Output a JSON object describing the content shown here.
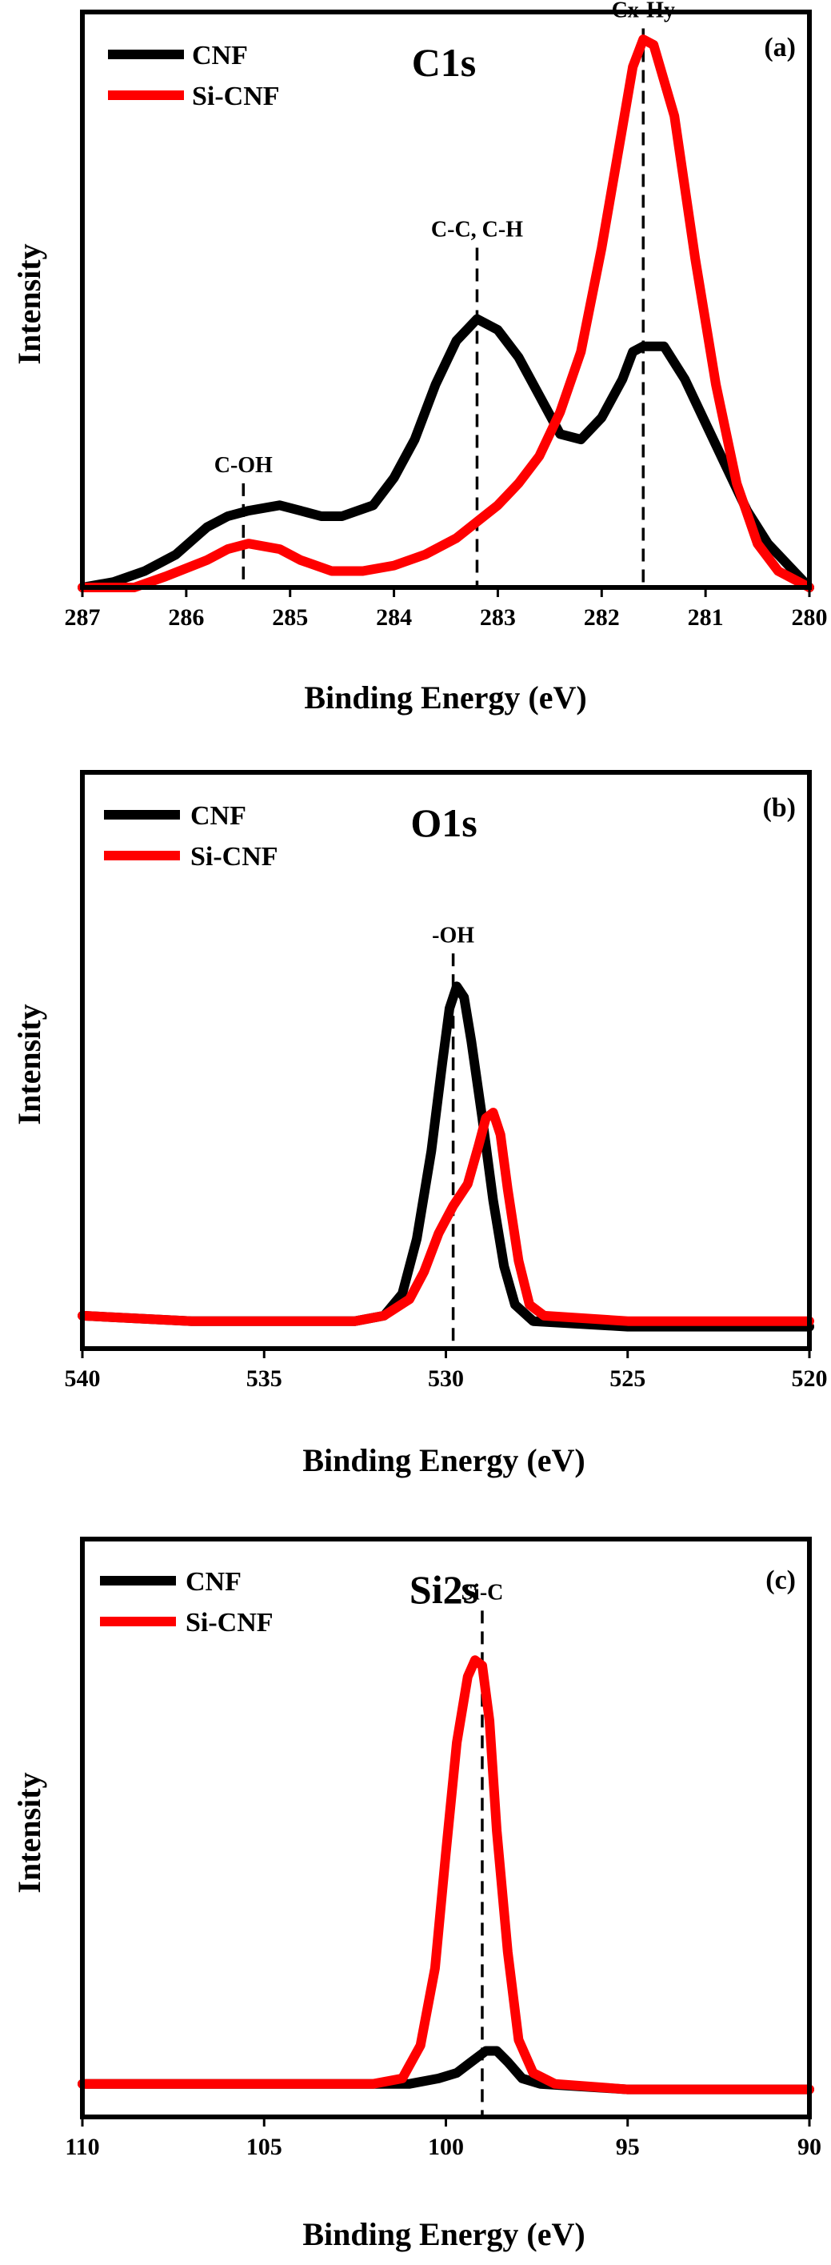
{
  "chart_data": [
    {
      "type": "line",
      "panel_label": "(a)",
      "title": "C1s",
      "xlabel": "Binding Energy (eV)",
      "ylabel": "Intensity",
      "xlim": [
        287,
        280
      ],
      "x_reversed": true,
      "ylim": [
        0,
        1.05
      ],
      "xticks": [
        287,
        286,
        285,
        284,
        283,
        282,
        281,
        280
      ],
      "legend_position": "top-left",
      "series": [
        {
          "name": "CNF",
          "color": "#000000",
          "points": [
            [
              287,
              0.0
            ],
            [
              286.7,
              0.01
            ],
            [
              286.4,
              0.03
            ],
            [
              286.1,
              0.06
            ],
            [
              285.8,
              0.11
            ],
            [
              285.6,
              0.13
            ],
            [
              285.4,
              0.14
            ],
            [
              285.1,
              0.15
            ],
            [
              284.9,
              0.14
            ],
            [
              284.7,
              0.13
            ],
            [
              284.5,
              0.13
            ],
            [
              284.2,
              0.15
            ],
            [
              284,
              0.2
            ],
            [
              283.8,
              0.27
            ],
            [
              283.6,
              0.37
            ],
            [
              283.4,
              0.45
            ],
            [
              283.2,
              0.49
            ],
            [
              283.0,
              0.47
            ],
            [
              282.8,
              0.42
            ],
            [
              282.6,
              0.35
            ],
            [
              282.4,
              0.28
            ],
            [
              282.2,
              0.27
            ],
            [
              282.0,
              0.31
            ],
            [
              281.8,
              0.38
            ],
            [
              281.7,
              0.43
            ],
            [
              281.6,
              0.44
            ],
            [
              281.4,
              0.44
            ],
            [
              281.2,
              0.38
            ],
            [
              281.0,
              0.3
            ],
            [
              280.8,
              0.22
            ],
            [
              280.6,
              0.14
            ],
            [
              280.4,
              0.08
            ],
            [
              280.2,
              0.04
            ],
            [
              280,
              0.0
            ]
          ]
        },
        {
          "name": "Si-CNF",
          "color": "#ff0000",
          "points": [
            [
              287,
              0.0
            ],
            [
              286.5,
              0.0
            ],
            [
              286.2,
              0.02
            ],
            [
              285.8,
              0.05
            ],
            [
              285.6,
              0.07
            ],
            [
              285.4,
              0.08
            ],
            [
              285.1,
              0.07
            ],
            [
              284.9,
              0.05
            ],
            [
              284.6,
              0.03
            ],
            [
              284.3,
              0.03
            ],
            [
              284,
              0.04
            ],
            [
              283.7,
              0.06
            ],
            [
              283.4,
              0.09
            ],
            [
              283.2,
              0.12
            ],
            [
              283.0,
              0.15
            ],
            [
              282.8,
              0.19
            ],
            [
              282.6,
              0.24
            ],
            [
              282.4,
              0.32
            ],
            [
              282.2,
              0.43
            ],
            [
              282.0,
              0.62
            ],
            [
              281.8,
              0.84
            ],
            [
              281.7,
              0.95
            ],
            [
              281.6,
              1.0
            ],
            [
              281.5,
              0.99
            ],
            [
              281.3,
              0.86
            ],
            [
              281.1,
              0.6
            ],
            [
              280.9,
              0.37
            ],
            [
              280.7,
              0.19
            ],
            [
              280.5,
              0.08
            ],
            [
              280.3,
              0.03
            ],
            [
              280,
              0.0
            ]
          ]
        }
      ],
      "annotations": [
        {
          "text": "C-OH",
          "x": 285.45,
          "y_top": 0.19
        },
        {
          "text": "C-C, C-H",
          "x": 283.2,
          "y_top": 0.62
        },
        {
          "text": "Cx-Hy",
          "x": 281.6,
          "y_top": 1.02
        }
      ]
    },
    {
      "type": "line",
      "panel_label": "(b)",
      "title": "O1s",
      "xlabel": "Binding Energy (eV)",
      "ylabel": "Intensity",
      "xlim": [
        540,
        520
      ],
      "x_reversed": true,
      "ylim": [
        0,
        1.05
      ],
      "xticks": [
        540,
        535,
        530,
        525,
        520
      ],
      "legend_position": "top-left",
      "series": [
        {
          "name": "CNF",
          "color": "#000000",
          "points": [
            [
              540,
              0.06
            ],
            [
              537,
              0.05
            ],
            [
              534,
              0.05
            ],
            [
              532.5,
              0.05
            ],
            [
              531.7,
              0.06
            ],
            [
              531.2,
              0.1
            ],
            [
              530.8,
              0.2
            ],
            [
              530.4,
              0.36
            ],
            [
              530.1,
              0.52
            ],
            [
              529.9,
              0.62
            ],
            [
              529.7,
              0.66
            ],
            [
              529.5,
              0.64
            ],
            [
              529.3,
              0.56
            ],
            [
              529.0,
              0.42
            ],
            [
              528.7,
              0.27
            ],
            [
              528.4,
              0.15
            ],
            [
              528.1,
              0.08
            ],
            [
              527.6,
              0.05
            ],
            [
              525,
              0.04
            ],
            [
              522,
              0.04
            ],
            [
              520,
              0.04
            ]
          ]
        },
        {
          "name": "Si-CNF",
          "color": "#ff0000",
          "points": [
            [
              540,
              0.06
            ],
            [
              537,
              0.05
            ],
            [
              534,
              0.05
            ],
            [
              532.5,
              0.05
            ],
            [
              531.7,
              0.06
            ],
            [
              531.0,
              0.09
            ],
            [
              530.6,
              0.14
            ],
            [
              530.2,
              0.21
            ],
            [
              529.8,
              0.26
            ],
            [
              529.4,
              0.3
            ],
            [
              529.1,
              0.37
            ],
            [
              528.9,
              0.42
            ],
            [
              528.7,
              0.43
            ],
            [
              528.5,
              0.39
            ],
            [
              528.3,
              0.29
            ],
            [
              528.0,
              0.16
            ],
            [
              527.7,
              0.08
            ],
            [
              527.3,
              0.06
            ],
            [
              525,
              0.05
            ],
            [
              522,
              0.05
            ],
            [
              520,
              0.05
            ]
          ]
        }
      ],
      "annotations": [
        {
          "text": "-OH",
          "x": 529.8,
          "y_top": 0.72
        }
      ]
    },
    {
      "type": "line",
      "panel_label": "(c)",
      "title": "Si2s",
      "xlabel": "Binding Energy (eV)",
      "ylabel": "Intensity",
      "xlim": [
        110,
        90
      ],
      "x_reversed": true,
      "ylim": [
        0,
        1.05
      ],
      "xticks": [
        110,
        105,
        100,
        95,
        90
      ],
      "legend_position": "top-left",
      "series": [
        {
          "name": "CNF",
          "color": "#000000",
          "points": [
            [
              110,
              0.06
            ],
            [
              106,
              0.06
            ],
            [
              102,
              0.06
            ],
            [
              101,
              0.06
            ],
            [
              100.2,
              0.07
            ],
            [
              99.7,
              0.08
            ],
            [
              99.3,
              0.1
            ],
            [
              98.9,
              0.12
            ],
            [
              98.6,
              0.12
            ],
            [
              98.3,
              0.1
            ],
            [
              97.9,
              0.07
            ],
            [
              97.4,
              0.06
            ],
            [
              95,
              0.05
            ],
            [
              90,
              0.05
            ]
          ]
        },
        {
          "name": "Si-CNF",
          "color": "#ff0000",
          "points": [
            [
              110,
              0.06
            ],
            [
              106,
              0.06
            ],
            [
              102,
              0.06
            ],
            [
              101.2,
              0.07
            ],
            [
              100.7,
              0.13
            ],
            [
              100.3,
              0.27
            ],
            [
              100.0,
              0.48
            ],
            [
              99.7,
              0.68
            ],
            [
              99.4,
              0.8
            ],
            [
              99.2,
              0.83
            ],
            [
              99.0,
              0.82
            ],
            [
              98.8,
              0.72
            ],
            [
              98.6,
              0.52
            ],
            [
              98.3,
              0.3
            ],
            [
              98.0,
              0.14
            ],
            [
              97.6,
              0.08
            ],
            [
              97.0,
              0.06
            ],
            [
              95,
              0.05
            ],
            [
              90,
              0.05
            ]
          ]
        }
      ],
      "annotations": [
        {
          "text": "Si-C",
          "x": 99.0,
          "y_top": 0.92
        }
      ]
    }
  ]
}
